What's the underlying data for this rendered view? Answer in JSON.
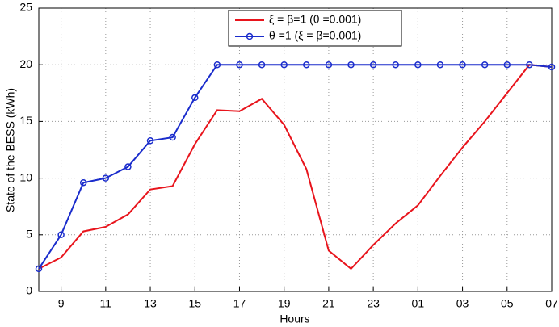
{
  "chart_data": {
    "type": "line",
    "xlabel": "Hours",
    "ylabel": "State of the BESS (kWh)",
    "categories": [
      null,
      "9",
      null,
      "11",
      null,
      "13",
      null,
      "15",
      null,
      "17",
      null,
      "19",
      null,
      "21",
      null,
      "23",
      null,
      "01",
      null,
      "03",
      null,
      "05",
      null,
      "07"
    ],
    "series": [
      {
        "name": "ξ = β=1 (θ =0.001)",
        "color": "#e8141c",
        "marker": false,
        "values": [
          2.0,
          3.0,
          5.3,
          5.7,
          6.8,
          9.0,
          9.3,
          13.0,
          16.0,
          15.9,
          17.0,
          14.7,
          10.8,
          3.6,
          2.0,
          4.1,
          6.0,
          7.6,
          10.2,
          12.7,
          15.0,
          17.5,
          20.0,
          19.8
        ]
      },
      {
        "name": "θ =1 (ξ = β=0.001)",
        "color": "#1a2ccc",
        "marker": true,
        "values": [
          2.0,
          5.0,
          9.6,
          10.0,
          11.0,
          13.3,
          13.6,
          17.1,
          20,
          20,
          20,
          20,
          20,
          20,
          20,
          20,
          20,
          20,
          20,
          20,
          20,
          20,
          20,
          19.8
        ]
      }
    ],
    "ylim": [
      0,
      25
    ],
    "yticks": [
      0,
      5,
      10,
      15,
      20,
      25
    ],
    "grid": true,
    "legend": "top"
  }
}
